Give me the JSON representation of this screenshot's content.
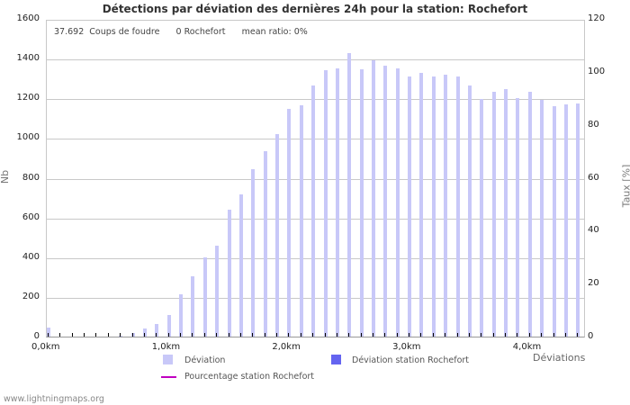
{
  "title": "Détections par déviation des dernières 24h pour la station: Rochefort",
  "info": {
    "count": "37.692",
    "count_label": "Coups de foudre",
    "station_count": "0 Rochefort",
    "mean_ratio": "mean ratio: 0%"
  },
  "footer": "www.lightningmaps.org",
  "legend": {
    "deviation": "Déviation",
    "station": "Déviation station Rochefort",
    "percent": "Pourcentage station Rochefort"
  },
  "colors": {
    "deviation": "#c8c8f8",
    "station": "#6464f0",
    "percent": "#c000c0"
  },
  "chart_data": {
    "type": "bar",
    "title": "Détections par déviation des dernières 24h pour la station: Rochefort",
    "xlabel": "Déviations",
    "ylabel": "Nb",
    "y2label": "Taux [%]",
    "ylim": [
      0,
      1600
    ],
    "y2lim": [
      0,
      120
    ],
    "yticks": [
      "0",
      "200",
      "400",
      "600",
      "800",
      "1000",
      "1200",
      "1400",
      "1600"
    ],
    "y2ticks": [
      "0",
      "20",
      "40",
      "60",
      "80",
      "100",
      "120"
    ],
    "xticks": [
      "0,0km",
      "1,0km",
      "2,0km",
      "3,0km",
      "4,0km"
    ],
    "grid": true,
    "legend_position": "bottom",
    "categories": [
      0.0,
      0.1,
      0.2,
      0.3,
      0.4,
      0.5,
      0.6,
      0.7,
      0.8,
      0.9,
      1.0,
      1.1,
      1.2,
      1.3,
      1.4,
      1.5,
      1.6,
      1.7,
      1.8,
      1.9,
      2.0,
      2.1,
      2.2,
      2.3,
      2.4,
      2.5,
      2.6,
      2.7,
      2.8,
      2.9,
      3.0,
      3.1,
      3.2,
      3.3,
      3.4,
      3.5,
      3.6,
      3.7,
      3.8,
      3.9,
      4.0,
      4.1,
      4.2,
      4.3,
      4.4
    ],
    "series": [
      {
        "name": "Déviation",
        "values": [
          45,
          0,
          0,
          0,
          0,
          0,
          5,
          20,
          40,
          65,
          110,
          215,
          305,
          400,
          460,
          640,
          715,
          845,
          935,
          1020,
          1145,
          1165,
          1265,
          1340,
          1350,
          1430,
          1345,
          1390,
          1365,
          1350,
          1310,
          1330,
          1310,
          1320,
          1310,
          1265,
          1195,
          1235,
          1245,
          1200,
          1235,
          1190,
          1160,
          1170,
          1175
        ]
      },
      {
        "name": "Déviation station Rochefort",
        "values": [
          0,
          0,
          0,
          0,
          0,
          0,
          0,
          0,
          0,
          0,
          0,
          0,
          0,
          0,
          0,
          0,
          0,
          0,
          0,
          0,
          0,
          0,
          0,
          0,
          0,
          0,
          0,
          0,
          0,
          0,
          0,
          0,
          0,
          0,
          0,
          0,
          0,
          0,
          0,
          0,
          0,
          0,
          0,
          0,
          0
        ]
      },
      {
        "name": "Pourcentage station Rochefort",
        "values": []
      }
    ]
  }
}
